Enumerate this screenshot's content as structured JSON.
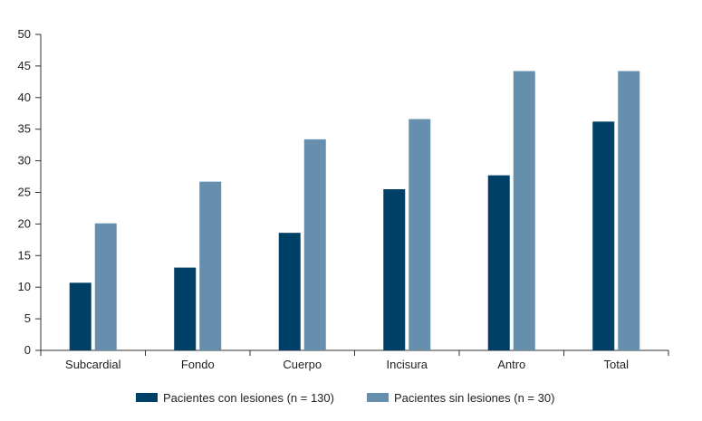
{
  "chart_data": {
    "type": "bar",
    "title": "",
    "xlabel": "",
    "ylabel": "",
    "categories": [
      "Subcardial",
      "Fondo",
      "Cuerpo",
      "Incisura",
      "Antro",
      "Total"
    ],
    "ylim": [
      0,
      50
    ],
    "yticks": [
      0,
      5,
      10,
      15,
      20,
      25,
      30,
      35,
      40,
      45,
      50
    ],
    "grid": false,
    "legend_position": "bottom",
    "series": [
      {
        "name": "Pacientes con lesiones (n = 130)",
        "color": "#003f66",
        "values": [
          10.7,
          13.1,
          18.6,
          25.5,
          27.7,
          36.2
        ]
      },
      {
        "name": "Pacientes sin lesiones (n = 30)",
        "color": "#668fad",
        "values": [
          20.1,
          26.7,
          33.4,
          36.6,
          44.2,
          44.2
        ]
      }
    ]
  }
}
